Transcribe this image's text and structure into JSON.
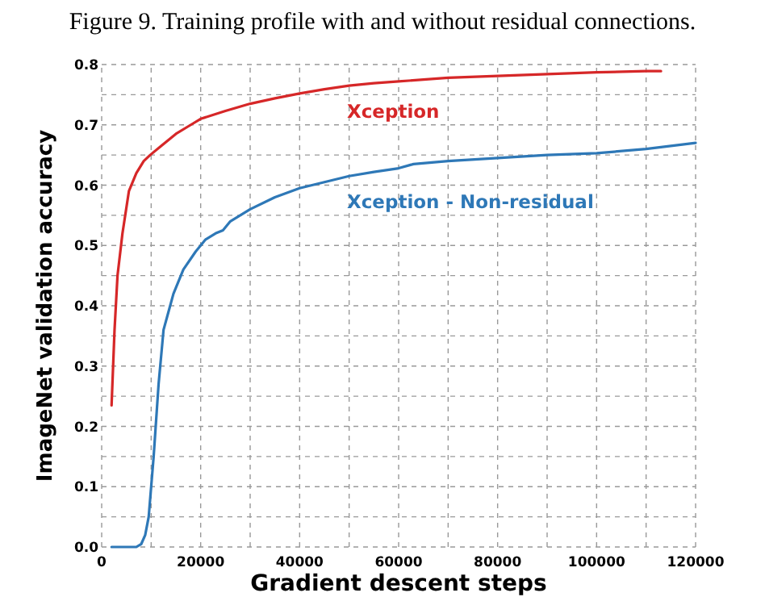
{
  "chart_data": {
    "type": "line",
    "title": "Figure 9. Training profile with and without residual connections.",
    "xlabel": "Gradient descent steps",
    "ylabel": "ImageNet validation accuracy",
    "xlim": [
      0,
      120000
    ],
    "ylim": [
      0,
      0.8
    ],
    "xticks": [
      0,
      {
        "value": 10000,
        "label": null
      },
      20000,
      {
        "value": 30000,
        "label": null
      },
      40000,
      {
        "value": 50000,
        "label": null
      },
      60000,
      {
        "value": 70000,
        "label": null
      },
      80000,
      {
        "value": 90000,
        "label": null
      },
      100000,
      {
        "value": 110000,
        "label": null
      },
      120000
    ],
    "yticks": [
      {
        "value": 0,
        "label": "0.0"
      },
      {
        "value": 0.05,
        "label": null
      },
      0.1,
      {
        "value": 0.15,
        "label": null
      },
      0.2,
      {
        "value": 0.25,
        "label": null
      },
      0.3,
      {
        "value": 0.35,
        "label": null
      },
      0.4,
      {
        "value": 0.45,
        "label": null
      },
      0.5,
      {
        "value": 0.55,
        "label": null
      },
      0.6,
      {
        "value": 0.65,
        "label": null
      },
      0.7,
      {
        "value": 0.75,
        "label": null
      },
      0.8
    ],
    "grid": true,
    "legend": false,
    "marker": "none",
    "line_style": "solid",
    "series": [
      {
        "name": "Xception",
        "color": "#d62728",
        "x": [
          2000,
          2600,
          3200,
          4200,
          5500,
          7000,
          8500,
          9800,
          12000,
          15000,
          18000,
          20000,
          25000,
          30000,
          35000,
          40000,
          45000,
          50000,
          55000,
          60000,
          65000,
          70000,
          80000,
          90000,
          100000,
          110000,
          113000
        ],
        "values": [
          0.235,
          0.36,
          0.45,
          0.52,
          0.59,
          0.62,
          0.64,
          0.65,
          0.665,
          0.685,
          0.7,
          0.71,
          0.723,
          0.735,
          0.744,
          0.752,
          0.759,
          0.765,
          0.769,
          0.772,
          0.775,
          0.778,
          0.781,
          0.784,
          0.787,
          0.789,
          0.789
        ]
      },
      {
        "name": "Xception - Non-residual",
        "color": "#2e78b7",
        "x": [
          2000,
          5000,
          7000,
          8000,
          8800,
          9500,
          10500,
          11500,
          12500,
          13500,
          14500,
          16500,
          19000,
          21000,
          23000,
          24500,
          26000,
          30000,
          35000,
          40000,
          45000,
          50000,
          55000,
          60000,
          63000,
          70000,
          80000,
          90000,
          100000,
          110000,
          120000
        ],
        "values": [
          0.0,
          0.0,
          0.0,
          0.005,
          0.02,
          0.05,
          0.15,
          0.27,
          0.36,
          0.39,
          0.42,
          0.46,
          0.49,
          0.51,
          0.52,
          0.525,
          0.54,
          0.56,
          0.58,
          0.595,
          0.605,
          0.615,
          0.622,
          0.628,
          0.635,
          0.64,
          0.645,
          0.65,
          0.653,
          0.66,
          0.67
        ]
      }
    ]
  }
}
